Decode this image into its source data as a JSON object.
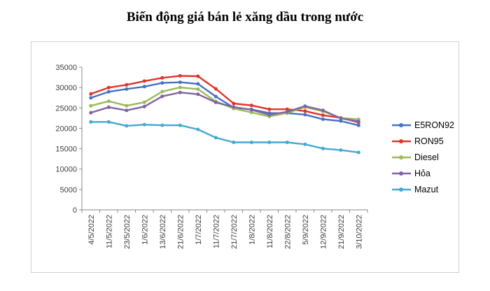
{
  "title": "Biến động giá bán lẻ xăng dầu trong nước",
  "chart_data": {
    "type": "line",
    "title": "Biến động giá bán lẻ xăng dầu trong nước",
    "x": [
      "4/5/2022",
      "11/5/2022",
      "23/5/2022",
      "1/6/2022",
      "13/6/2022",
      "21/6/2022",
      "1/7/2022",
      "11/7/2022",
      "21/7/2022",
      "1/8/2022",
      "11/8/2022",
      "22/8/2022",
      "5/9/2022",
      "12/9/2022",
      "21/9/2022",
      "3/10/2022"
    ],
    "series": [
      {
        "name": "E5RON92",
        "color": "#4472c4",
        "values": [
          27468,
          28959,
          29633,
          30235,
          31117,
          31302,
          30891,
          27788,
          25073,
          24629,
          23725,
          23725,
          23359,
          22231,
          21781,
          20732
        ]
      },
      {
        "name": "RON95",
        "color": "#e0342b",
        "values": [
          28434,
          29988,
          30657,
          31578,
          32375,
          32873,
          32763,
          29675,
          26070,
          25608,
          24669,
          24669,
          24230,
          23215,
          22584,
          21443
        ]
      },
      {
        "name": "Diesel",
        "color": "#9bbb59",
        "values": [
          25530,
          26650,
          25553,
          26394,
          29020,
          30019,
          29615,
          26593,
          24858,
          23908,
          22908,
          23759,
          25188,
          24180,
          22536,
          22208
        ]
      },
      {
        "name": "Hỏa",
        "color": "#8064a2",
        "values": [
          23828,
          25168,
          24405,
          25346,
          27839,
          28785,
          28353,
          26345,
          25246,
          24533,
          23320,
          24056,
          25445,
          24418,
          22440,
          21688
        ]
      },
      {
        "name": "Mazut",
        "color": "#45a9cf",
        "values": [
          21560,
          21560,
          20598,
          20901,
          20735,
          20735,
          19722,
          17712,
          16548,
          16548,
          16548,
          16548,
          16079,
          15039,
          14656,
          14094
        ]
      }
    ],
    "ylim": [
      0,
      35000
    ],
    "yticks": [
      0,
      5000,
      10000,
      15000,
      20000,
      25000,
      30000,
      35000
    ],
    "grid": false,
    "legend_position": "right",
    "axis_color": "#898989"
  }
}
